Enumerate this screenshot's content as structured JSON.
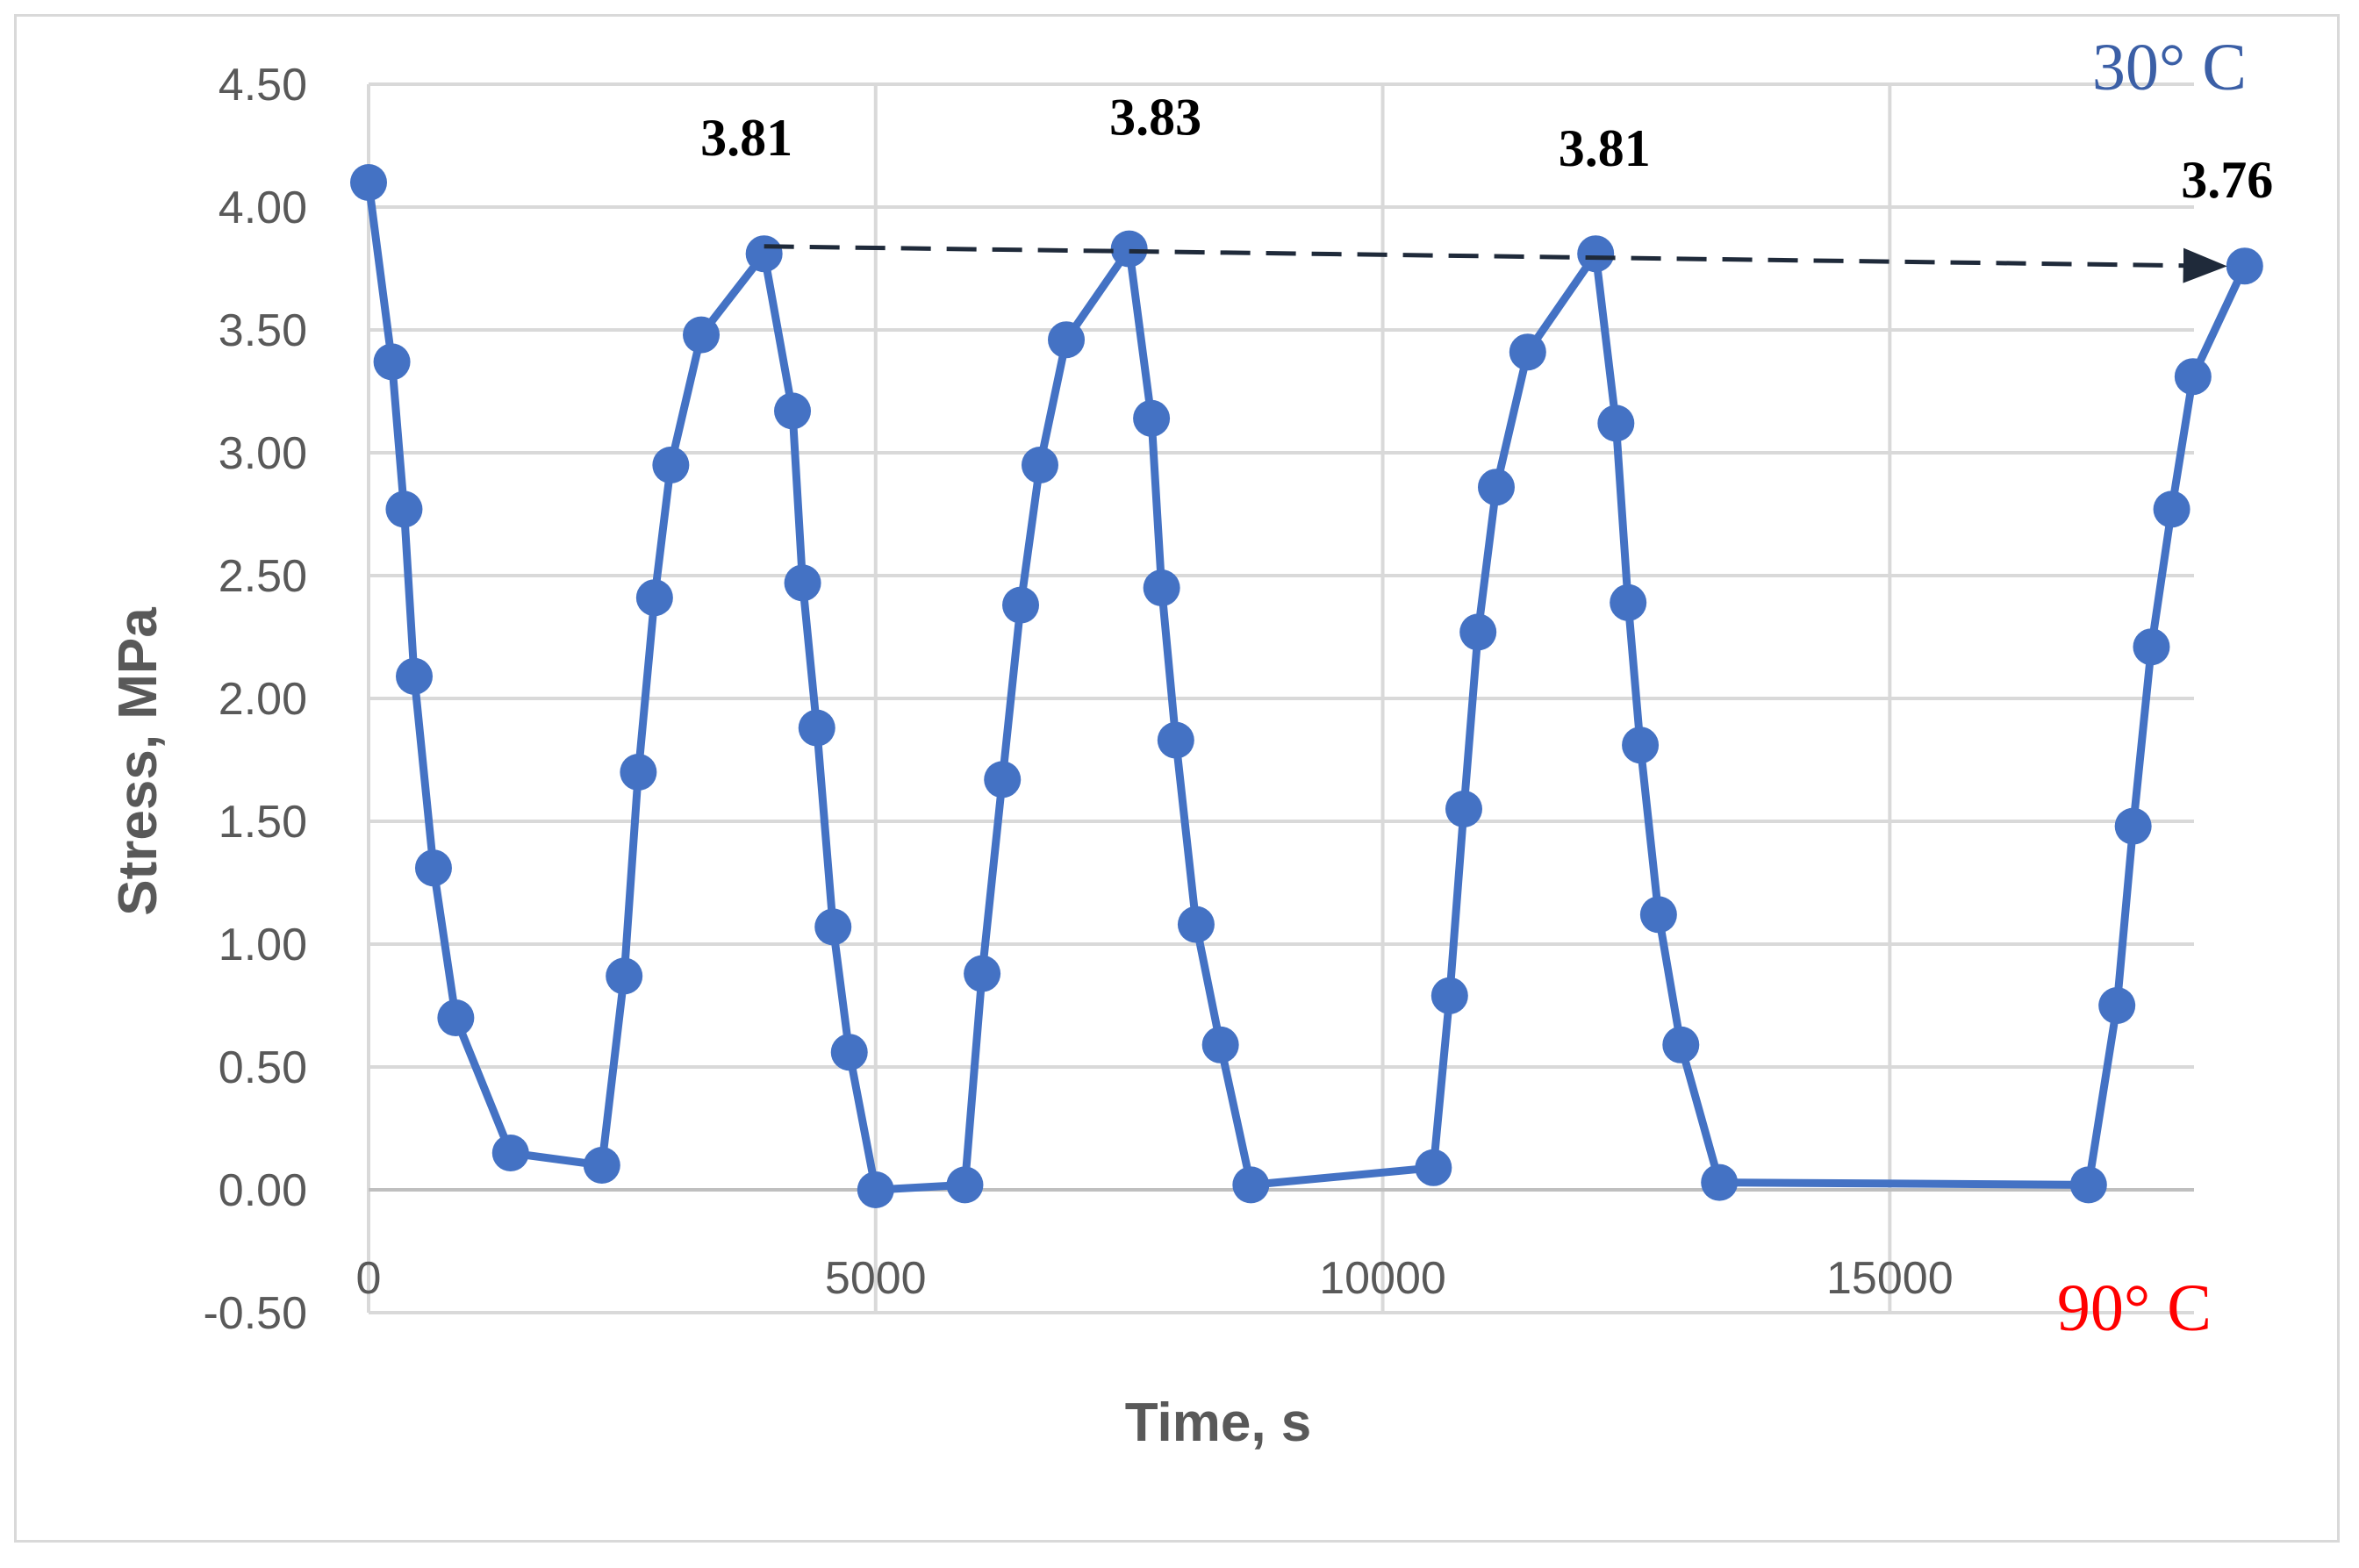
{
  "chart_data": {
    "type": "line",
    "xlabel": "Time, s",
    "ylabel": "Stress, MPa",
    "xlim": [
      0,
      18000
    ],
    "ylim": [
      -0.5,
      4.5
    ],
    "x_ticks": [
      0,
      5000,
      10000,
      15000
    ],
    "x_tick_labels": [
      "0",
      "5000",
      "10000",
      "15000"
    ],
    "y_ticks": [
      -0.5,
      0,
      0.5,
      1,
      1.5,
      2,
      2.5,
      3,
      3.5,
      4,
      4.5
    ],
    "y_tick_labels": [
      "-0.50",
      "0.00",
      "0.50",
      "1.00",
      "1.50",
      "2.00",
      "2.50",
      "3.00",
      "3.50",
      "4.00",
      "4.50"
    ],
    "grid": true,
    "series": [
      {
        "color": "#4472c4",
        "marker": "circle",
        "x": [
          0,
          230,
          350,
          450,
          640,
          860,
          1400,
          2300,
          2520,
          2660,
          2820,
          2980,
          3280,
          3900,
          4180,
          4280,
          4420,
          4580,
          4740,
          5000,
          5880,
          6050,
          6250,
          6430,
          6620,
          6880,
          7500,
          7720,
          7820,
          7960,
          8160,
          8400,
          8700,
          10500,
          10660,
          10800,
          10940,
          11120,
          11430,
          12100,
          12300,
          12420,
          12540,
          12720,
          12940,
          13320,
          16960,
          17240,
          17400,
          17580,
          17780,
          17990,
          18500
        ],
        "y": [
          4.1,
          3.37,
          2.77,
          2.09,
          1.31,
          0.7,
          0.15,
          0.1,
          0.87,
          1.7,
          2.41,
          2.95,
          3.48,
          3.81,
          3.17,
          2.47,
          1.88,
          1.07,
          0.56,
          0.0,
          0.02,
          0.88,
          1.67,
          2.38,
          2.95,
          3.46,
          3.83,
          3.14,
          2.45,
          1.83,
          1.08,
          0.59,
          0.02,
          0.09,
          0.79,
          1.55,
          2.27,
          2.86,
          3.41,
          3.81,
          3.12,
          2.39,
          1.81,
          1.12,
          0.59,
          0.03,
          0.02,
          0.75,
          1.48,
          2.21,
          2.77,
          3.31,
          3.76
        ]
      }
    ],
    "annotations": [
      {
        "text": "3.81",
        "x": 3900,
        "y": 3.81
      },
      {
        "text": "3.83",
        "x": 7500,
        "y": 3.83
      },
      {
        "text": "3.81",
        "x": 12100,
        "y": 3.81
      },
      {
        "text": "3.76",
        "x": 18500,
        "y": 3.76
      }
    ],
    "trend_arrow": {
      "from": {
        "x": 3900,
        "y": 3.84
      },
      "to": {
        "x": 18500,
        "y": 3.76
      },
      "style": "dashed",
      "color": "#1f2a3a"
    },
    "temperature_labels": {
      "top": {
        "text": "30°  C",
        "color": "#3b5fa6"
      },
      "bottom": {
        "text": "90°  C",
        "color": "#ff0000"
      }
    }
  }
}
